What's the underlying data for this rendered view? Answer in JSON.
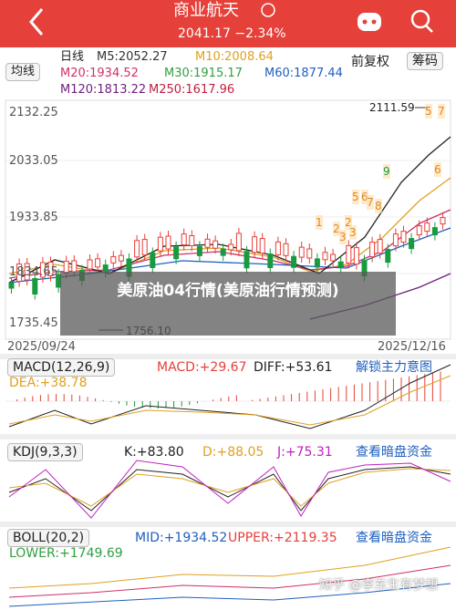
{
  "header": {
    "title": "商业航天",
    "subtitle": "2041.17 −2.34%"
  },
  "ma_bar": {
    "period": "日线",
    "m5": "M5:2052.27",
    "m10": "M10:2008.64",
    "selector": "均线",
    "m20": "M20:1934.52",
    "m30": "M30:1915.17",
    "m60": "M60:1877.44",
    "m120": "M120:1813.22",
    "m250": "M250:1617.96",
    "adjust": "前复权",
    "chips": "筹码"
  },
  "main_chart": {
    "yticks": [
      "2132.25",
      "2033.05",
      "1933.85",
      "1834.65",
      "1735.45"
    ],
    "high_label": "2111.59",
    "low_label": "1756.10",
    "start_date": "2025/09/24",
    "end_date": "2025/12/16",
    "sequence_marks": [
      "1",
      "2",
      "3",
      "2",
      "3",
      "5",
      "6",
      "7",
      "8",
      "9",
      "5",
      "7",
      "6"
    ]
  },
  "overlay": "美原油04行情(美原油行情预测)",
  "macd": {
    "name": "MACD(12,26,9)",
    "macd": "MACD:+29.67",
    "diff": "DIFF:+53.61",
    "dea": "DEA:+38.78",
    "link": "解锁主力意图"
  },
  "kdj": {
    "name": "KDJ(9,3,3)",
    "k": "K:+83.80",
    "d": "D:+88.05",
    "j": "J:+75.31",
    "link": "查看暗盘资金"
  },
  "boll": {
    "name": "BOLL(20,2)",
    "mid": "MID:+1934.52",
    "upper": "UPPER:+2119.35",
    "link": "查看暗盘资金",
    "lower": "LOWER:+1749.69"
  },
  "watermark": "知乎 @李东生有梦想"
}
